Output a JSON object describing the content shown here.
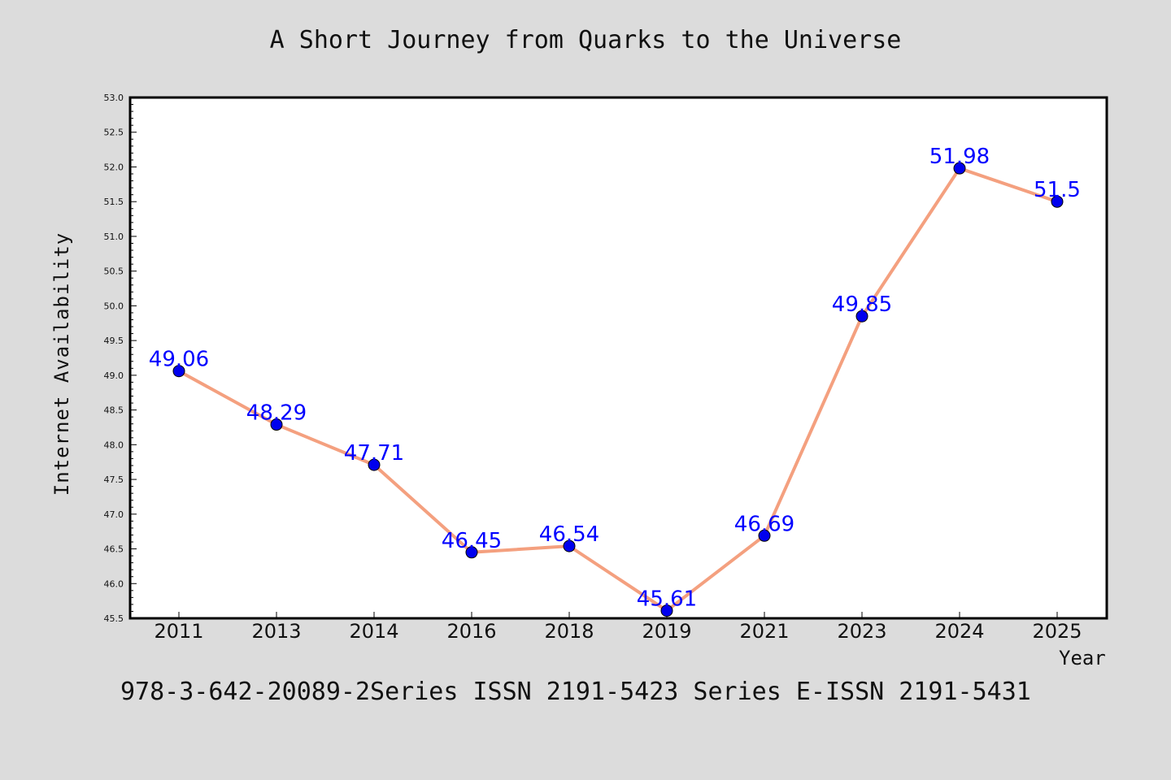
{
  "chart_data": {
    "type": "line",
    "title": "A Short Journey from Quarks to the Universe",
    "xlabel": "Year",
    "ylabel": "Internet Availability",
    "categories": [
      "2011",
      "2013",
      "2014",
      "2016",
      "2018",
      "2019",
      "2021",
      "2023",
      "2024",
      "2025"
    ],
    "series": [
      {
        "values": [
          49.06,
          48.29,
          47.71,
          46.45,
          46.54,
          45.61,
          46.69,
          49.85,
          51.98,
          51.5
        ],
        "labels": [
          "49.06",
          "48.29",
          "47.71",
          "46.45",
          "46.54",
          "45.61",
          "46.69",
          "49.85",
          "51.98",
          "51.5"
        ]
      }
    ],
    "ylim": [
      45.5,
      53.0
    ],
    "yticks": [
      "45.5",
      "46.0",
      "46.5",
      "47.0",
      "47.5",
      "48.0",
      "48.5",
      "49.0",
      "49.5",
      "50.0",
      "50.5",
      "51.0",
      "51.5",
      "52.0",
      "52.5",
      "53.0"
    ],
    "line_color": "#f4a07f",
    "marker_color": "#0000ee",
    "label_color": "#0000ff",
    "background": "#dcdcdc",
    "plot_background": "#ffffff",
    "grid": false,
    "legend": "none"
  },
  "footer": {
    "text": "978-3-642-20089-2Series ISSN 2191-5423 Series E-ISSN 2191-5431"
  }
}
